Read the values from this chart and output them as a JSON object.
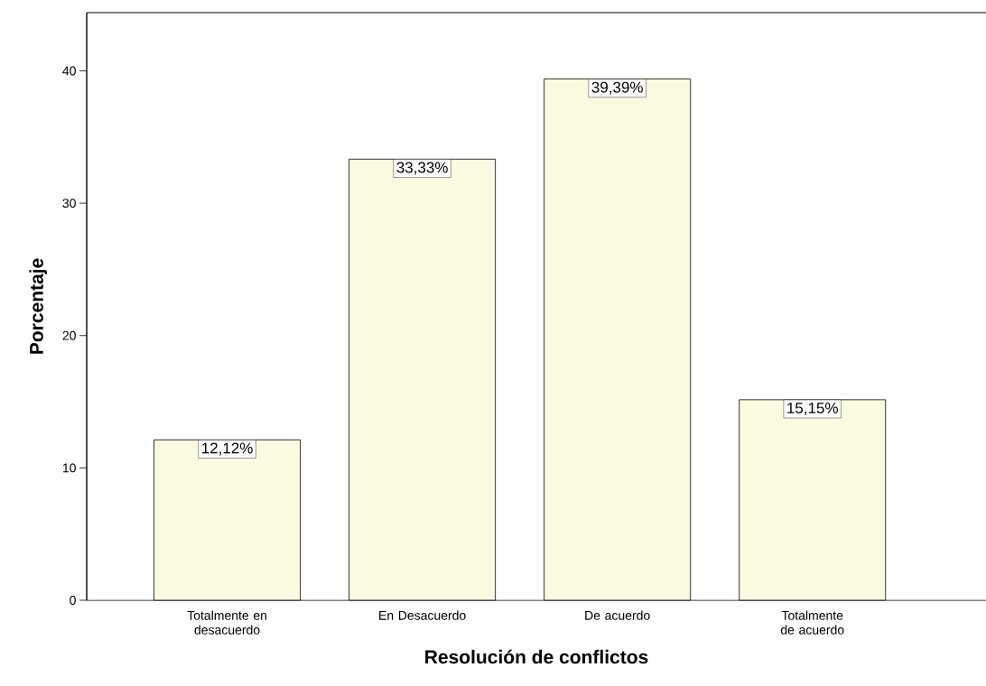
{
  "chart_data": {
    "type": "bar",
    "xlabel": "Resolución de conflictos",
    "ylabel": "Porcentaje",
    "categories": [
      "Totalmente en desacuerdo",
      "En Desacuerdo",
      "De acuerdo",
      "Totalmente de acuerdo"
    ],
    "values": [
      12.12,
      33.33,
      39.39,
      15.15
    ],
    "value_labels": [
      "12,12%",
      "33,33%",
      "39,39%",
      "15,15%"
    ],
    "color": "#fafae0",
    "ylim": [
      0,
      44.4
    ],
    "yticks": [
      0,
      10,
      20,
      30,
      40
    ],
    "grid": false
  }
}
